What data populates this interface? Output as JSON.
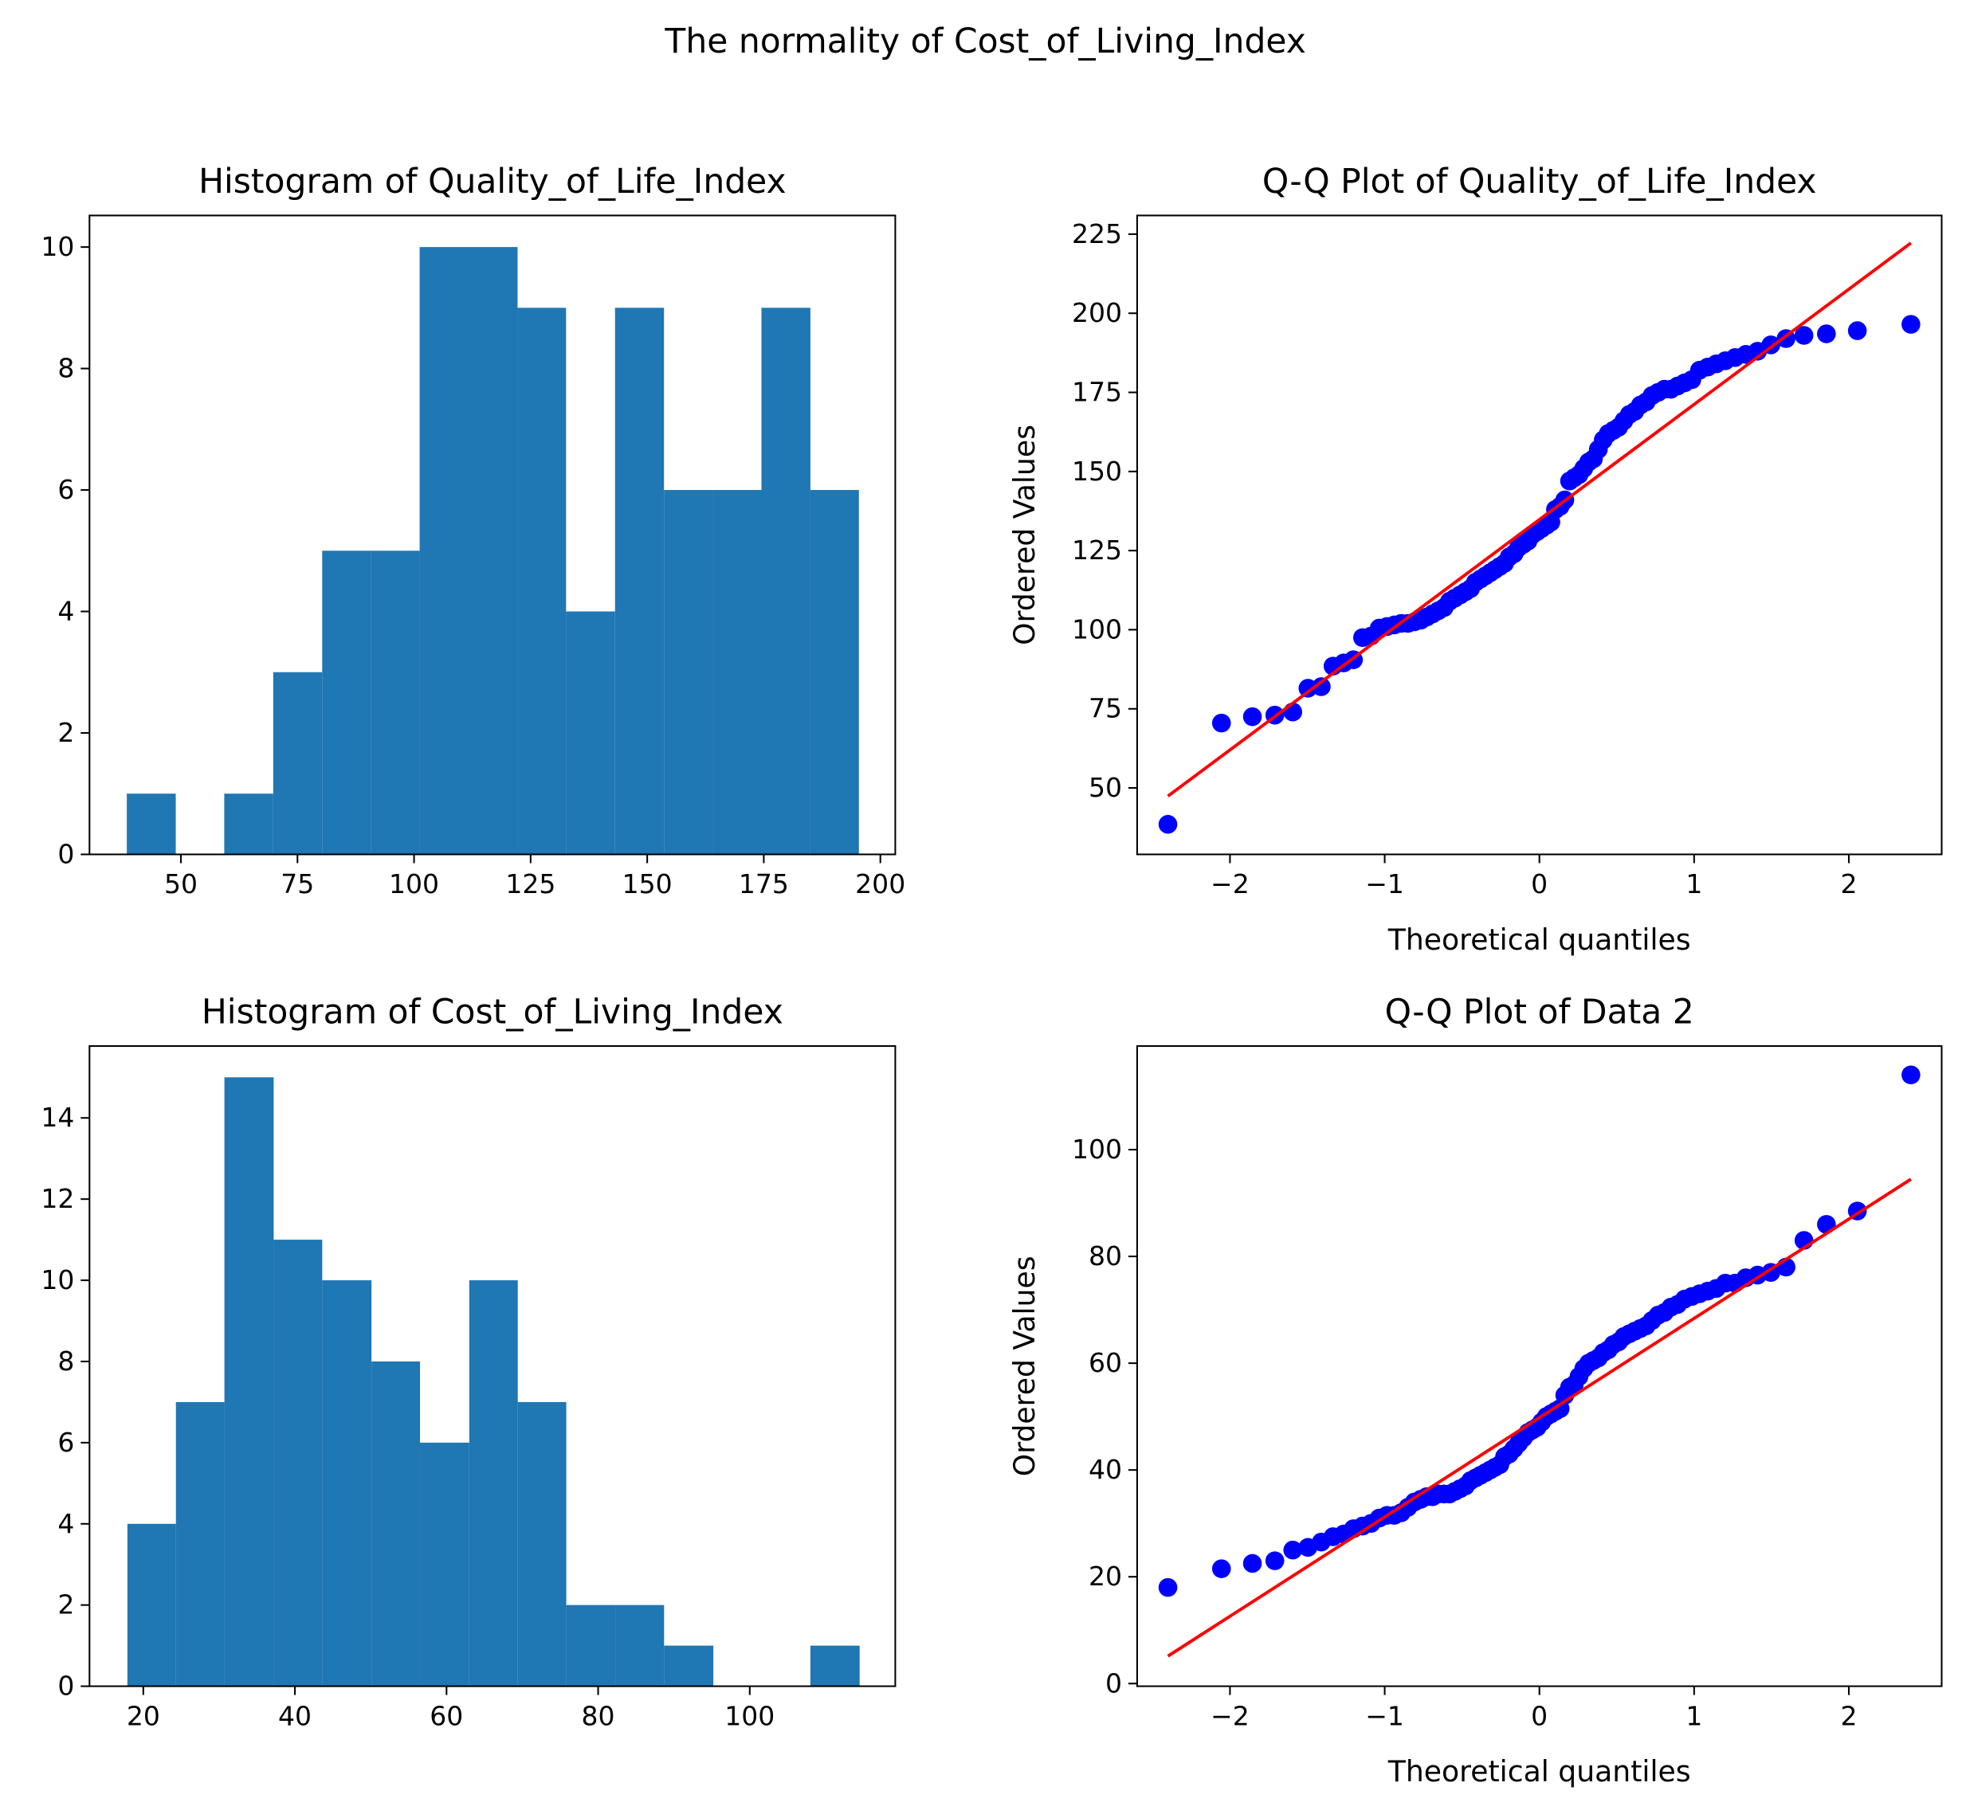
{
  "title": "The normality of Cost_of_Living_Index",
  "chart_data": [
    {
      "type": "histogram",
      "title": "Histogram of Quality_of_Life_Index",
      "color": "#1f77b4",
      "bins": [
        38.4,
        48.9,
        59.3,
        69.8,
        80.3,
        90.7,
        101.2,
        111.7,
        122.2,
        132.6,
        143.1,
        153.6,
        164.0,
        174.5,
        185.0,
        195.4
      ],
      "counts": [
        1,
        0,
        1,
        3,
        5,
        5,
        10,
        10,
        9,
        4,
        9,
        6,
        6,
        9,
        6
      ],
      "xlim": [
        30.4,
        203.2
      ],
      "ylim": [
        0,
        10.52
      ],
      "xticks": [
        50,
        75,
        100,
        125,
        150,
        175,
        200
      ],
      "yticks": [
        0,
        2,
        4,
        6,
        8,
        10
      ]
    },
    {
      "type": "qq",
      "title": "Q-Q Plot of Quality_of_Life_Index",
      "xlabel": "Theoretical quantiles",
      "ylabel": "Ordered Values",
      "color": "#0000ff",
      "x": [
        -2.401,
        -2.055,
        -1.855,
        -1.71,
        -1.594,
        -1.496,
        -1.41,
        -1.334,
        -1.265,
        -1.202,
        -1.143,
        -1.088,
        -1.035,
        -0.985,
        -0.938,
        -0.893,
        -0.85,
        -0.808,
        -0.767,
        -0.728,
        -0.69,
        -0.653,
        -0.616,
        -0.581,
        -0.546,
        -0.512,
        -0.478,
        -0.445,
        -0.413,
        -0.381,
        -0.349,
        -0.318,
        -0.287,
        -0.256,
        -0.225,
        -0.195,
        -0.164,
        -0.134,
        -0.104,
        -0.074,
        -0.045,
        -0.015,
        0.015,
        0.045,
        0.074,
        0.104,
        0.134,
        0.164,
        0.195,
        0.225,
        0.256,
        0.287,
        0.318,
        0.349,
        0.381,
        0.413,
        0.445,
        0.478,
        0.512,
        0.546,
        0.581,
        0.616,
        0.653,
        0.69,
        0.728,
        0.767,
        0.808,
        0.85,
        0.893,
        0.938,
        0.985,
        1.035,
        1.088,
        1.143,
        1.202,
        1.265,
        1.334,
        1.41,
        1.496,
        1.594,
        1.71,
        1.855,
        2.055,
        2.401
      ],
      "values": [
        38.5,
        70.5,
        72.5,
        73,
        74,
        81.5,
        82,
        88.5,
        89.5,
        90.5,
        97.5,
        98,
        100.5,
        101,
        101.5,
        102,
        102,
        102.5,
        103,
        104,
        105,
        106,
        107,
        109,
        110,
        111,
        112,
        113,
        115,
        116,
        117,
        118,
        119,
        120,
        121,
        123,
        124,
        126,
        127,
        128,
        130,
        131,
        132,
        133,
        134,
        138,
        139,
        141,
        147,
        148,
        149,
        151,
        153,
        154,
        157,
        160,
        162,
        163,
        164,
        166,
        168,
        169,
        171,
        172,
        174,
        175,
        176,
        176,
        177,
        178,
        179,
        182,
        183,
        184,
        185,
        186,
        187,
        188,
        190,
        192,
        193,
        193.5,
        194.5,
        196.5
      ],
      "fit": {
        "slope": 36.4,
        "intercept": 134.8,
        "color": "#ff0000"
      },
      "xlim": [
        -2.6,
        2.6
      ],
      "ylim": [
        29.0,
        230.9
      ],
      "xticks": [
        {
          "value": -2,
          "label": "−2"
        },
        {
          "value": -1,
          "label": "−1"
        },
        0,
        1,
        2
      ],
      "yticks": [
        50,
        75,
        100,
        125,
        150,
        175,
        200,
        225
      ]
    },
    {
      "type": "histogram",
      "title": "Histogram of Cost_of_Living_Index",
      "color": "#1f77b4",
      "bins": [
        17.9,
        24.3,
        30.7,
        37.2,
        43.6,
        50.1,
        56.5,
        63.0,
        69.4,
        75.8,
        82.3,
        88.7,
        95.2,
        101.6,
        108.0,
        114.5
      ],
      "counts": [
        4,
        7,
        15,
        11,
        10,
        8,
        6,
        10,
        7,
        2,
        2,
        1,
        0,
        0,
        1
      ],
      "xlim": [
        12.9,
        119.2
      ],
      "ylim": [
        0,
        15.77
      ],
      "xticks": [
        20,
        40,
        60,
        80,
        100
      ],
      "yticks": [
        0,
        2,
        4,
        6,
        8,
        10,
        12,
        14
      ]
    },
    {
      "type": "qq",
      "title": "Q-Q Plot of Data 2",
      "xlabel": "Theoretical quantiles",
      "ylabel": "Ordered Values",
      "color": "#0000ff",
      "x": [
        -2.401,
        -2.055,
        -1.855,
        -1.71,
        -1.594,
        -1.496,
        -1.41,
        -1.334,
        -1.265,
        -1.202,
        -1.143,
        -1.088,
        -1.035,
        -0.985,
        -0.938,
        -0.893,
        -0.85,
        -0.808,
        -0.767,
        -0.728,
        -0.69,
        -0.653,
        -0.616,
        -0.581,
        -0.546,
        -0.512,
        -0.478,
        -0.445,
        -0.413,
        -0.381,
        -0.349,
        -0.318,
        -0.287,
        -0.256,
        -0.225,
        -0.195,
        -0.164,
        -0.134,
        -0.104,
        -0.074,
        -0.045,
        -0.015,
        0.015,
        0.045,
        0.074,
        0.104,
        0.134,
        0.164,
        0.195,
        0.225,
        0.256,
        0.287,
        0.318,
        0.349,
        0.381,
        0.413,
        0.445,
        0.478,
        0.512,
        0.546,
        0.581,
        0.616,
        0.653,
        0.69,
        0.728,
        0.767,
        0.808,
        0.85,
        0.893,
        0.938,
        0.985,
        1.035,
        1.088,
        1.143,
        1.202,
        1.265,
        1.334,
        1.41,
        1.496,
        1.594,
        1.71,
        1.855,
        2.055,
        2.401
      ],
      "values": [
        18,
        21.5,
        22.5,
        23,
        25,
        25.5,
        26.5,
        27.5,
        28,
        29,
        29.5,
        30,
        31,
        31.5,
        31.5,
        32,
        33,
        34,
        34.5,
        35,
        35,
        35.5,
        35.5,
        35.5,
        36,
        36.5,
        37,
        38,
        38.5,
        39,
        39.5,
        40,
        40.5,
        41,
        42.5,
        43,
        44,
        45,
        46,
        47,
        47.5,
        48,
        49,
        50,
        50.5,
        51,
        51.5,
        54,
        55.5,
        56,
        57.5,
        59,
        60,
        60.5,
        61,
        62,
        62.5,
        63.5,
        64,
        65,
        65.5,
        66,
        66.5,
        67,
        68,
        69,
        69.5,
        70.5,
        71,
        72,
        72.5,
        73,
        73.5,
        74,
        75,
        75,
        76,
        76.5,
        77,
        78,
        83,
        86,
        88.5,
        114
      ],
      "fit": {
        "slope": 18.6,
        "intercept": 49.8,
        "color": "#ff0000"
      },
      "xlim": [
        -2.6,
        2.6
      ],
      "ylim": [
        -0.5,
        119.4
      ],
      "xticks": [
        {
          "value": -2,
          "label": "−2"
        },
        {
          "value": -1,
          "label": "−1"
        },
        0,
        1,
        2
      ],
      "yticks": [
        0,
        20,
        40,
        60,
        80,
        100
      ]
    }
  ]
}
